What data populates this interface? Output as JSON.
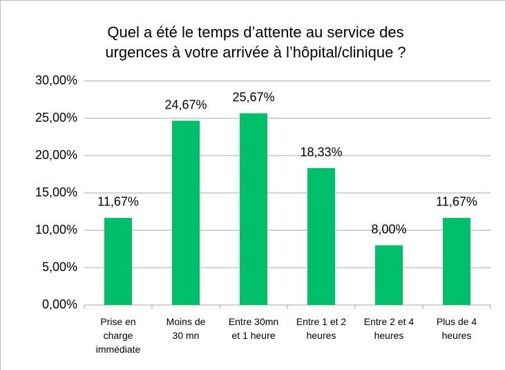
{
  "chart_data": {
    "type": "bar",
    "title": "Quel a été le temps d’attente au service des\nurgences à votre arrivée à l’hôpital/clinique ?",
    "categories": [
      "Prise en\ncharge\nimmédiate",
      "Moins de\n30 mn",
      "Entre 30mn\net 1 heure",
      "Entre 1 et 2\nheures",
      "Entre 2 et 4\nheures",
      "Plus de 4\nheures"
    ],
    "values": [
      11.67,
      24.67,
      25.67,
      18.33,
      8.0,
      11.67
    ],
    "value_labels": [
      "11,67%",
      "24,67%",
      "25,67%",
      "18,33%",
      "8,00%",
      "11,67%"
    ],
    "color": "#00bf6a",
    "ylim": [
      0,
      30
    ],
    "yticks": [
      {
        "value": 0,
        "label": "0,00%"
      },
      {
        "value": 5,
        "label": "5,00%"
      },
      {
        "value": 10,
        "label": "10,00%"
      },
      {
        "value": 15,
        "label": "15,00%"
      },
      {
        "value": 20,
        "label": "20,00%"
      },
      {
        "value": 25,
        "label": "25,00%"
      },
      {
        "value": 30,
        "label": "30,00%"
      }
    ],
    "grid": true
  }
}
